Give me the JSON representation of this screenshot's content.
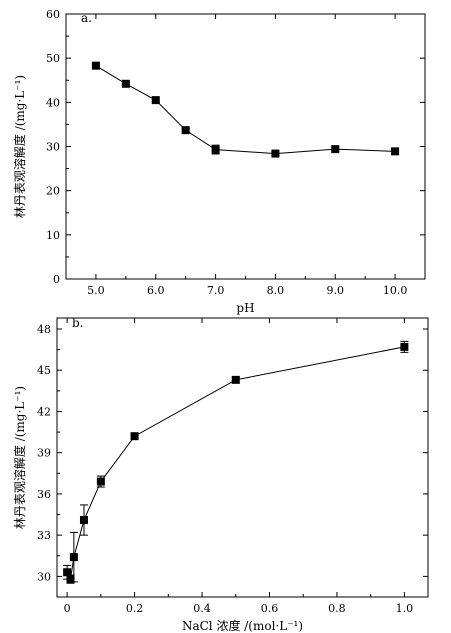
{
  "chart_data": [
    {
      "type": "line",
      "panel_label": "a.",
      "xlabel": "pH",
      "ylabel": "林丹表观溶解度 /(mg·L⁻¹)",
      "xlim": [
        4.5,
        10.5
      ],
      "ylim": [
        0,
        60
      ],
      "xticks": [
        5,
        6,
        7,
        8,
        9,
        10
      ],
      "xtick_labels": [
        "5.0",
        "6.0",
        "7.0",
        "8.0",
        "9.0",
        "10.0"
      ],
      "yticks": [
        0,
        10,
        20,
        30,
        40,
        50,
        60
      ],
      "ytick_labels": [
        "0",
        "10",
        "20",
        "30",
        "40",
        "50",
        "60"
      ],
      "grid": false,
      "marker": "square",
      "series": [
        {
          "x": [
            5.0,
            5.5,
            6.0,
            6.5,
            7.0,
            8.0,
            9.0,
            10.0
          ],
          "y": [
            48.3,
            44.2,
            40.5,
            33.7,
            29.3,
            28.4,
            29.4,
            28.9
          ],
          "error": [
            0.4,
            0.4,
            0.4,
            0.4,
            1.0,
            0.4,
            0.4,
            0.6
          ]
        }
      ]
    },
    {
      "type": "line",
      "panel_label": "b.",
      "xlabel": "NaCl 浓度 /(mol·L⁻¹)",
      "ylabel": "林丹表观溶解度 /(mg·L⁻¹)",
      "xlim": [
        -0.03,
        1.07
      ],
      "ylim": [
        28.5,
        48.8
      ],
      "xticks": [
        0,
        0.2,
        0.4,
        0.6,
        0.8,
        1.0
      ],
      "xtick_labels": [
        "0",
        "0.2",
        "0.4",
        "0.6",
        "0.8",
        "1.0"
      ],
      "yticks": [
        30,
        33,
        36,
        39,
        42,
        45,
        48
      ],
      "ytick_labels": [
        "30",
        "33",
        "36",
        "39",
        "42",
        "45",
        "48"
      ],
      "grid": false,
      "marker": "square",
      "series": [
        {
          "x": [
            0.0,
            0.01,
            0.02,
            0.05,
            0.1,
            0.2,
            0.5,
            1.0
          ],
          "y": [
            30.3,
            29.8,
            31.4,
            34.1,
            36.9,
            40.2,
            44.3,
            46.7
          ],
          "error": [
            0.5,
            0.3,
            1.8,
            1.1,
            0.4,
            0.2,
            0.2,
            0.4
          ]
        }
      ]
    }
  ]
}
